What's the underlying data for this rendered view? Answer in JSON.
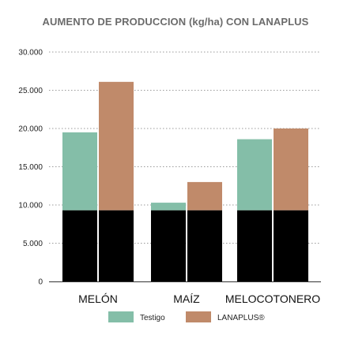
{
  "chart_data": {
    "type": "bar",
    "title": "AUMENTO DE PRODUCCION (kg/ha) CON LANAPLUS",
    "categories": [
      "MELÓN",
      "MAÍZ",
      "MELOCOTONERO"
    ],
    "base_value": 9300,
    "series": [
      {
        "name": "Testigo",
        "values": [
          19500,
          10300,
          18600
        ],
        "color": "#84bea8"
      },
      {
        "name": "LANAPLUS®",
        "values": [
          26100,
          13000,
          20000
        ],
        "color": "#c08a6a"
      }
    ],
    "base_color": "#000000",
    "ylim": [
      0,
      30000
    ],
    "y_ticks": [
      {
        "value": 0,
        "label": "0"
      },
      {
        "value": 5000,
        "label": "5.000"
      },
      {
        "value": 10000,
        "label": "10.000"
      },
      {
        "value": 15000,
        "label": "15.000"
      },
      {
        "value": 20000,
        "label": "20.000"
      },
      {
        "value": 25000,
        "label": "25.000"
      },
      {
        "value": 30000,
        "label": "30.000"
      }
    ],
    "grid": "dotted-horizontal",
    "legend_position": "bottom"
  }
}
